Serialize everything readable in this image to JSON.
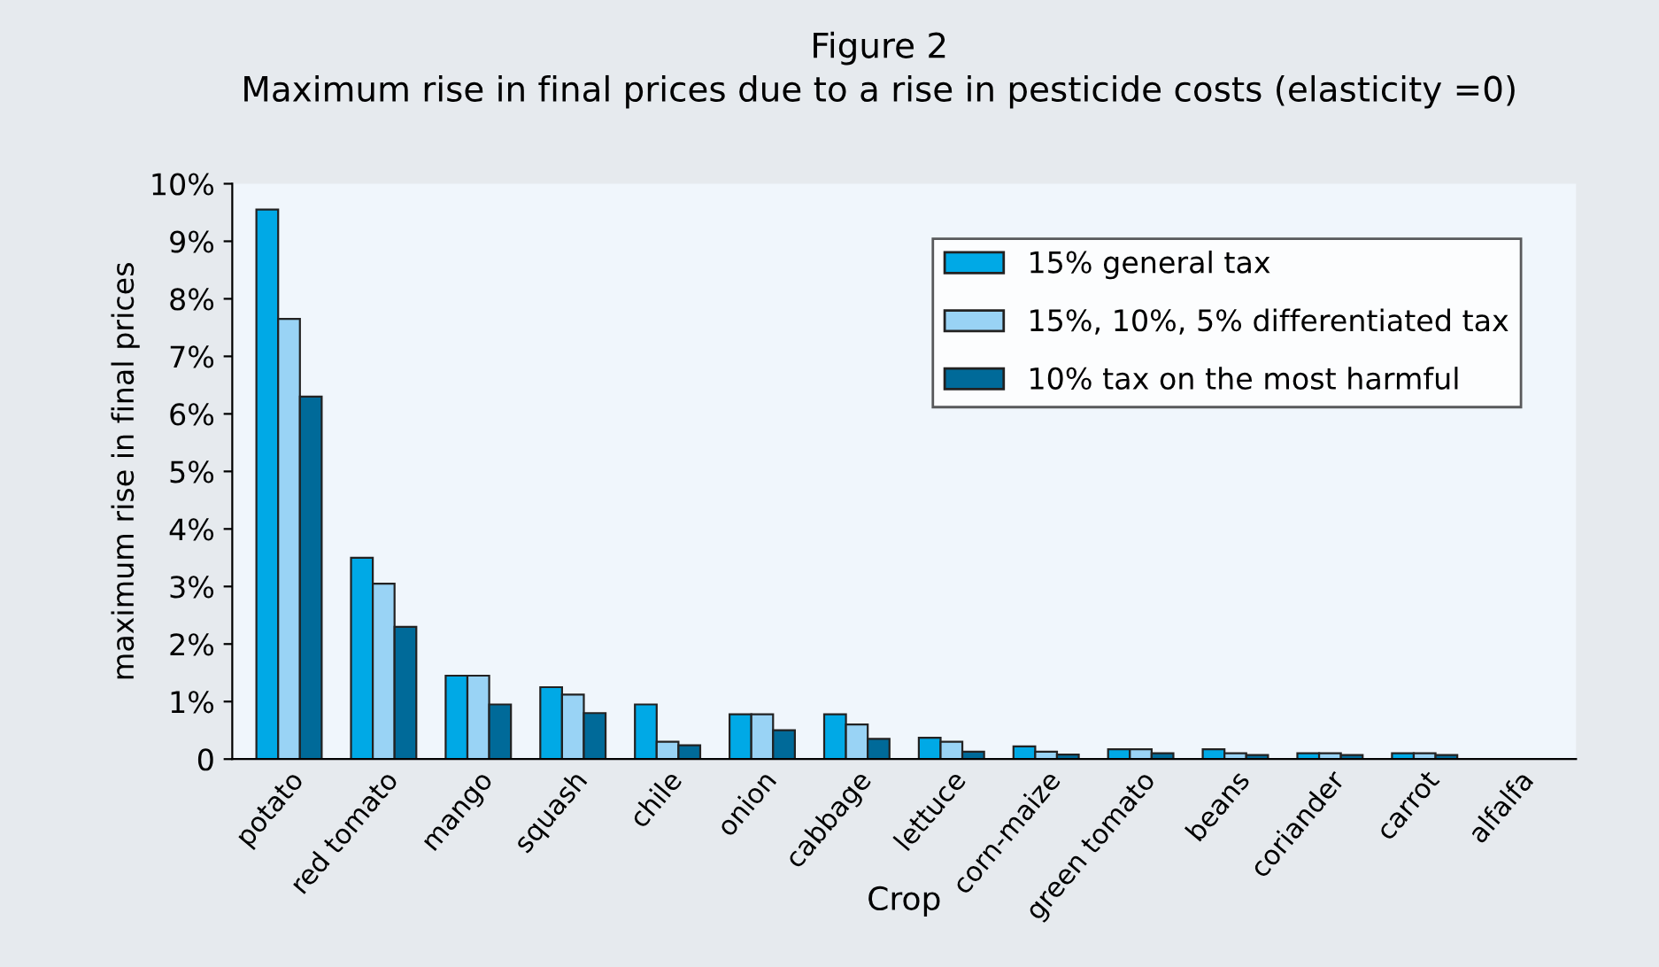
{
  "chart_data": {
    "type": "bar",
    "title": "Figure 2",
    "subtitle": "Maximum rise in final prices due to a rise in pesticide costs (elasticity =0)",
    "xlabel": "Crop",
    "ylabel": "maximum rise in final prices",
    "categories": [
      "potato",
      "red tomato",
      "mango",
      "squash",
      "chile",
      "onion",
      "cabbage",
      "lettuce",
      "corn-maize",
      "green tomato",
      "beans",
      "coriander",
      "carrot",
      "alfalfa"
    ],
    "series": [
      {
        "name": "15% general tax",
        "color": "#00a9e6",
        "values": [
          9.55,
          3.5,
          1.45,
          1.25,
          0.95,
          0.78,
          0.78,
          0.37,
          0.22,
          0.17,
          0.17,
          0.1,
          0.1,
          0
        ]
      },
      {
        "name": "15%, 10%, 5% differentiated tax",
        "color": "#99d3f5",
        "values": [
          7.65,
          3.05,
          1.45,
          1.12,
          0.3,
          0.78,
          0.6,
          0.3,
          0.13,
          0.17,
          0.1,
          0.1,
          0.1,
          0
        ]
      },
      {
        "name": "10% tax on the most harmful",
        "color": "#006a99",
        "values": [
          6.3,
          2.3,
          0.95,
          0.8,
          0.24,
          0.5,
          0.35,
          0.13,
          0.08,
          0.1,
          0.07,
          0.07,
          0.07,
          0
        ]
      }
    ],
    "ylim": [
      0,
      10
    ],
    "yticks": [
      0,
      {
        "value": 1,
        "label": "1%"
      },
      {
        "value": 2,
        "label": "2%"
      },
      {
        "value": 3,
        "label": "3%"
      },
      {
        "value": 4,
        "label": "4%"
      },
      {
        "value": 5,
        "label": "5%"
      },
      {
        "value": 6,
        "label": "6%"
      },
      {
        "value": 7,
        "label": "7%"
      },
      {
        "value": 8,
        "label": "8%"
      },
      {
        "value": 9,
        "label": "9%"
      },
      {
        "value": 10,
        "label": "10%"
      }
    ],
    "grid": false,
    "legend": "top right"
  }
}
